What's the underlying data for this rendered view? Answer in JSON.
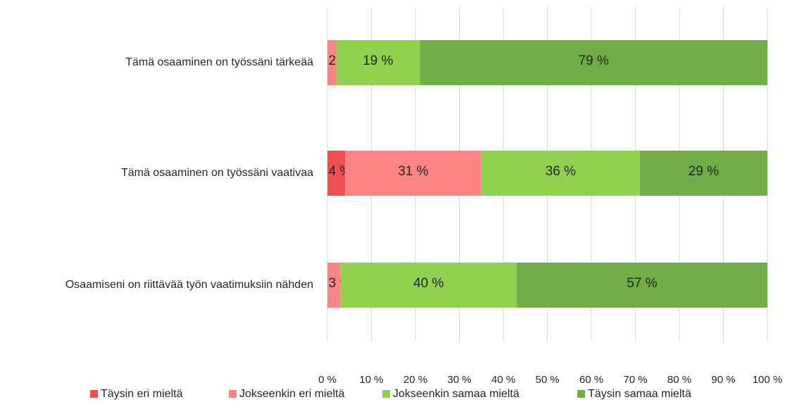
{
  "chart_data": {
    "type": "stacked_bar_horizontal",
    "categories": [
      "Tämä osaaminen on työssäni tärkeää",
      "Tämä osaaminen on työssäni vaativaa",
      "Osaamiseni on riittävää työn vaatimuksiin nähden"
    ],
    "series": [
      {
        "name": "Täysin eri mieltä",
        "color": "#f04f4f",
        "values": [
          0,
          4,
          0
        ],
        "value_labels": [
          null,
          "4 %",
          null
        ]
      },
      {
        "name": "Jokseenkin eri mieltä",
        "color": "#ff8585",
        "values": [
          2,
          31,
          3
        ],
        "value_labels": [
          "2 %",
          "31 %",
          "3 %"
        ]
      },
      {
        "name": "Jokseenkin samaa mieltä",
        "color": "#92d050",
        "values": [
          19,
          36,
          40
        ],
        "value_labels": [
          "19 %",
          "36 %",
          "40 %"
        ]
      },
      {
        "name": "Täysin samaa mieltä",
        "color": "#70ad47",
        "values": [
          79,
          29,
          57
        ],
        "value_labels": [
          "79 %",
          "29 %",
          "57 %"
        ]
      }
    ],
    "xlim": [
      0,
      100
    ],
    "xticks": [
      {
        "value": 0,
        "label": "0 %"
      },
      {
        "value": 10,
        "label": "10 %"
      },
      {
        "value": 20,
        "label": "20 %"
      },
      {
        "value": 30,
        "label": "30 %"
      },
      {
        "value": 40,
        "label": "40 %"
      },
      {
        "value": 50,
        "label": "50 %"
      },
      {
        "value": 60,
        "label": "60 %"
      },
      {
        "value": 70,
        "label": "70 %"
      },
      {
        "value": 80,
        "label": "80 %"
      },
      {
        "value": 90,
        "label": "90 %"
      },
      {
        "value": 100,
        "label": "100 %"
      }
    ],
    "grid": true,
    "legend": "bottom"
  }
}
